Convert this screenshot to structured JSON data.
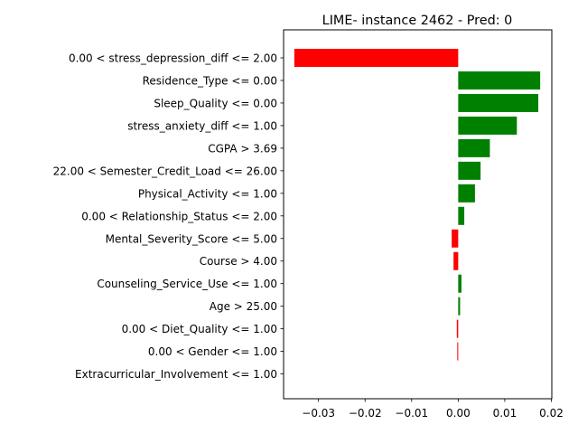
{
  "chart_data": {
    "type": "bar",
    "orientation": "horizontal",
    "title": "LIME- instance 2462 - Pred: 0",
    "xlabel": "",
    "ylabel": "",
    "xlim": [
      -0.0375,
      0.0201
    ],
    "xticks": [
      -0.03,
      -0.02,
      -0.01,
      0.0,
      0.01,
      0.02
    ],
    "xtick_labels": [
      "−0.03",
      "−0.02",
      "−0.01",
      "0.00",
      "0.01",
      "0.02"
    ],
    "grid": false,
    "legend": "none",
    "positive_color": "#008000",
    "negative_color": "#ff0000",
    "categories": [
      "0.00 < stress_depression_diff <= 2.00",
      "Residence_Type <= 0.00",
      "Sleep_Quality <= 0.00",
      "stress_anxiety_diff <= 1.00",
      "CGPA > 3.69",
      "22.00 < Semester_Credit_Load <= 26.00",
      "Physical_Activity <= 1.00",
      "0.00 < Relationship_Status <= 2.00",
      "Mental_Severity_Score <= 5.00",
      "Course > 4.00",
      "Counseling_Service_Use <= 1.00",
      "Age > 25.00",
      "0.00 < Diet_Quality <= 1.00",
      "0.00 < Gender <= 1.00",
      "Extracurricular_Involvement <= 1.00"
    ],
    "values": [
      -0.0352,
      0.0176,
      0.0172,
      0.0126,
      0.0068,
      0.0048,
      0.0036,
      0.0013,
      -0.0014,
      -0.001,
      0.0007,
      0.0004,
      -0.0003,
      -0.0002,
      0.0
    ]
  }
}
